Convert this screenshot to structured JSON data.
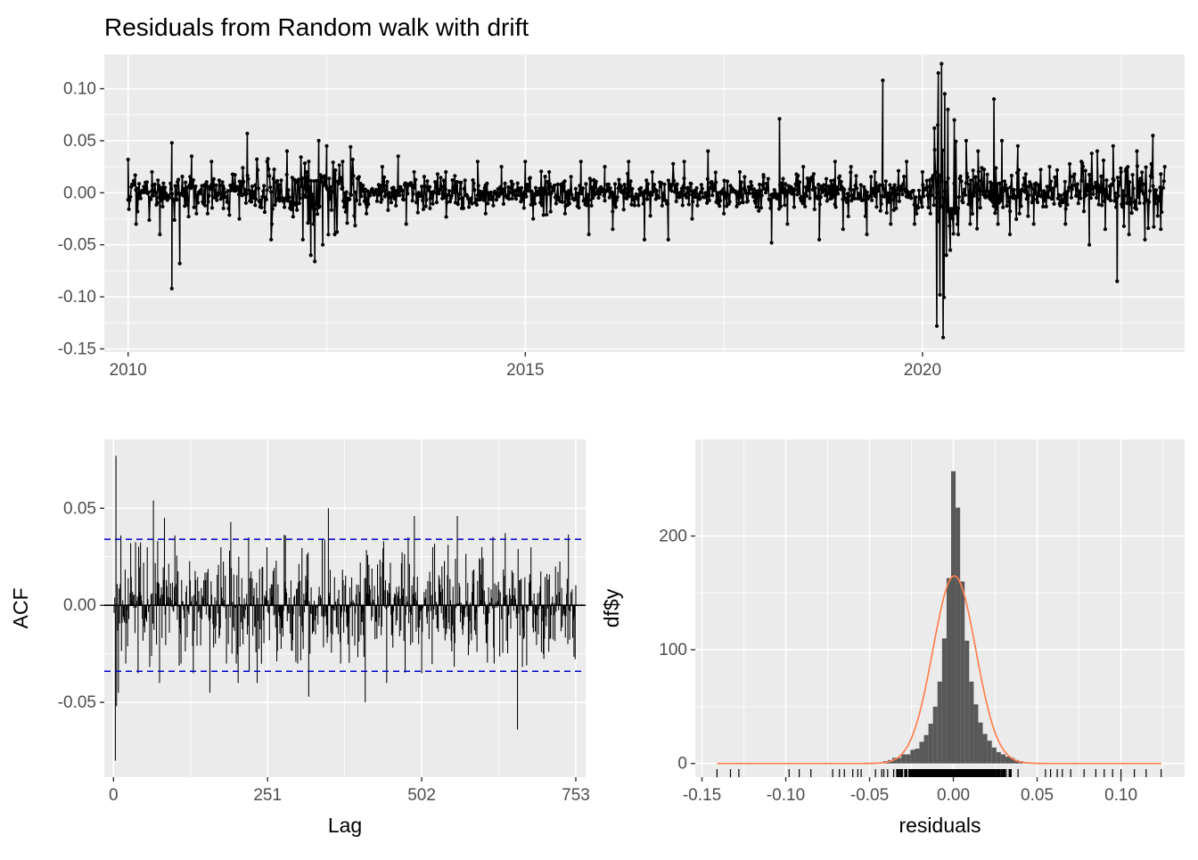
{
  "title": "Residuals from Random walk with drift",
  "colors": {
    "panel_bg": "#EBEBEB",
    "grid": "#FFFFFF",
    "series": "#000000",
    "ci_line": "#0000CC",
    "bars": "#595959",
    "density": "#FF7F50"
  },
  "chart_data": [
    {
      "name": "residuals-timeseries",
      "type": "line",
      "title": "Residuals from Random walk with drift",
      "xlabel": "",
      "ylabel": "",
      "xlim": [
        2009.7,
        2023.3
      ],
      "ylim": [
        -0.153,
        0.133
      ],
      "x_ticks": [
        2010,
        2015,
        2020
      ],
      "x_tick_labels": [
        "2010",
        "2015",
        "2020"
      ],
      "y_ticks": [
        0.1,
        0.05,
        0.0,
        -0.05,
        -0.1,
        -0.15
      ],
      "y_tick_labels": [
        "0.10",
        "0.05",
        "0.00",
        "-0.05",
        "-0.10",
        "-0.15"
      ],
      "grid": true,
      "series": [
        {
          "values_note_points": [
            [
              2010.0,
              0.032
            ],
            [
              2010.1,
              -0.03
            ],
            [
              2010.3,
              0.02
            ],
            [
              2010.4,
              -0.04
            ],
            [
              2010.55,
              0.048
            ],
            [
              2010.55,
              -0.092
            ],
            [
              2010.65,
              -0.068
            ],
            [
              2010.8,
              0.035
            ],
            [
              2011.0,
              -0.02
            ],
            [
              2011.05,
              0.03
            ],
            [
              2011.2,
              -0.015
            ],
            [
              2011.4,
              -0.025
            ],
            [
              2011.5,
              0.057
            ],
            [
              2011.6,
              -0.012
            ],
            [
              2011.75,
              0.03
            ],
            [
              2011.8,
              -0.045
            ],
            [
              2012.0,
              0.04
            ],
            [
              2012.05,
              -0.01
            ],
            [
              2012.2,
              -0.045
            ],
            [
              2012.25,
              0.02
            ],
            [
              2012.3,
              -0.06
            ],
            [
              2012.35,
              -0.066
            ],
            [
              2012.4,
              0.05
            ],
            [
              2012.45,
              -0.05
            ],
            [
              2012.5,
              0.045
            ],
            [
              2012.6,
              -0.04
            ],
            [
              2012.7,
              0.03
            ],
            [
              2012.8,
              0.044
            ],
            [
              2013.0,
              -0.02
            ],
            [
              2013.2,
              0.025
            ],
            [
              2013.4,
              0.035
            ],
            [
              2013.5,
              -0.03
            ],
            [
              2013.6,
              0.02
            ],
            [
              2013.8,
              -0.015
            ],
            [
              2014.0,
              0.02
            ],
            [
              2014.2,
              -0.015
            ],
            [
              2014.4,
              0.03
            ],
            [
              2014.5,
              -0.02
            ],
            [
              2014.7,
              0.025
            ],
            [
              2015.0,
              0.03
            ],
            [
              2015.1,
              -0.025
            ],
            [
              2015.3,
              0.02
            ],
            [
              2015.5,
              -0.02
            ],
            [
              2015.7,
              0.03
            ],
            [
              2015.8,
              -0.04
            ],
            [
              2016.0,
              0.025
            ],
            [
              2016.1,
              -0.035
            ],
            [
              2016.3,
              0.03
            ],
            [
              2016.5,
              -0.045
            ],
            [
              2016.6,
              0.02
            ],
            [
              2016.8,
              -0.045
            ],
            [
              2017.0,
              0.03
            ],
            [
              2017.1,
              -0.025
            ],
            [
              2017.3,
              0.04
            ],
            [
              2017.4,
              0.01
            ],
            [
              2017.5,
              -0.02
            ],
            [
              2017.7,
              0.02
            ],
            [
              2017.9,
              -0.01
            ],
            [
              2018.0,
              0.015
            ],
            [
              2018.1,
              -0.048
            ],
            [
              2018.2,
              0.071
            ],
            [
              2018.3,
              -0.03
            ],
            [
              2018.5,
              0.025
            ],
            [
              2018.7,
              -0.045
            ],
            [
              2018.9,
              0.03
            ],
            [
              2019.0,
              -0.035
            ],
            [
              2019.1,
              0.025
            ],
            [
              2019.3,
              -0.04
            ],
            [
              2019.4,
              0.02
            ],
            [
              2019.5,
              0.108
            ],
            [
              2019.6,
              -0.03
            ],
            [
              2019.8,
              0.03
            ],
            [
              2019.9,
              -0.03
            ],
            [
              2020.0,
              0.02
            ],
            [
              2020.1,
              -0.02
            ],
            [
              2020.15,
              0.062
            ],
            [
              2020.18,
              -0.128
            ],
            [
              2020.2,
              0.115
            ],
            [
              2020.22,
              -0.098
            ],
            [
              2020.24,
              0.124
            ],
            [
              2020.26,
              -0.139
            ],
            [
              2020.28,
              0.095
            ],
            [
              2020.3,
              -0.06
            ],
            [
              2020.32,
              0.08
            ],
            [
              2020.35,
              -0.055
            ],
            [
              2020.4,
              0.07
            ],
            [
              2020.45,
              -0.04
            ],
            [
              2020.55,
              0.05
            ],
            [
              2020.6,
              -0.03
            ],
            [
              2020.7,
              0.04
            ],
            [
              2020.9,
              0.09
            ],
            [
              2020.95,
              -0.03
            ],
            [
              2021.0,
              0.05
            ],
            [
              2021.1,
              -0.04
            ],
            [
              2021.2,
              0.045
            ],
            [
              2021.4,
              -0.03
            ],
            [
              2021.6,
              0.025
            ],
            [
              2021.8,
              -0.03
            ],
            [
              2022.0,
              0.03
            ],
            [
              2022.1,
              -0.05
            ],
            [
              2022.2,
              0.04
            ],
            [
              2022.3,
              -0.035
            ],
            [
              2022.4,
              0.045
            ],
            [
              2022.45,
              -0.085
            ],
            [
              2022.5,
              0.02
            ],
            [
              2022.6,
              -0.04
            ],
            [
              2022.7,
              0.04
            ],
            [
              2022.8,
              -0.045
            ],
            [
              2022.9,
              0.055
            ],
            [
              2023.0,
              -0.035
            ],
            [
              2023.05,
              0.025
            ]
          ]
        }
      ]
    },
    {
      "name": "acf",
      "type": "bar",
      "xlabel": "Lag",
      "ylabel": "ACF",
      "xlim": [
        -15,
        769
      ],
      "ylim": [
        -0.0885,
        0.0855
      ],
      "x_ticks": [
        0,
        251,
        502,
        753
      ],
      "x_tick_labels": [
        "0",
        "251",
        "502",
        "753"
      ],
      "y_ticks": [
        0.05,
        0.0,
        -0.05
      ],
      "y_tick_labels": [
        "0.05",
        "0.00",
        "-0.05"
      ],
      "ci": [
        0.034,
        -0.034
      ],
      "grid": true,
      "n_lags": 753,
      "notable_lags": [
        [
          1,
          -0.004
        ],
        [
          2,
          0.004
        ],
        [
          3,
          -0.08
        ],
        [
          4,
          0.077
        ],
        [
          5,
          -0.052
        ],
        [
          8,
          -0.045
        ],
        [
          12,
          0.036
        ],
        [
          20,
          -0.03
        ],
        [
          28,
          0.032
        ],
        [
          40,
          -0.035
        ],
        [
          55,
          0.03
        ],
        [
          65,
          0.054
        ],
        [
          75,
          -0.04
        ],
        [
          83,
          0.045
        ],
        [
          100,
          0.036
        ],
        [
          110,
          -0.03
        ],
        [
          130,
          -0.035
        ],
        [
          157,
          -0.045
        ],
        [
          175,
          0.03
        ],
        [
          200,
          -0.03
        ],
        [
          220,
          0.035
        ],
        [
          234,
          -0.04
        ],
        [
          250,
          0.03
        ],
        [
          280,
          0.036
        ],
        [
          300,
          -0.03
        ],
        [
          320,
          -0.025
        ],
        [
          340,
          0.034
        ],
        [
          350,
          0.05
        ],
        [
          370,
          -0.03
        ],
        [
          410,
          -0.05
        ],
        [
          440,
          0.033
        ],
        [
          445,
          -0.04
        ],
        [
          480,
          0.035
        ],
        [
          490,
          0.046
        ],
        [
          502,
          -0.035
        ],
        [
          520,
          0.03
        ],
        [
          560,
          0.046
        ],
        [
          600,
          0.03
        ],
        [
          620,
          -0.03
        ],
        [
          658,
          -0.064
        ],
        [
          680,
          0.03
        ],
        [
          700,
          -0.025
        ],
        [
          720,
          0.02
        ],
        [
          740,
          -0.02
        ]
      ]
    },
    {
      "name": "residual-histogram",
      "type": "bar",
      "xlabel": "residuals",
      "ylabel": "df$y",
      "xlim": [
        -0.154,
        0.138
      ],
      "ylim": [
        -12,
        285
      ],
      "x_ticks": [
        -0.15,
        -0.1,
        -0.05,
        0.0,
        0.05,
        0.1
      ],
      "x_tick_labels": [
        "-0.15",
        "-0.10",
        "-0.05",
        "0.00",
        "0.05",
        "0.10"
      ],
      "y_ticks": [
        0,
        100,
        200
      ],
      "y_tick_labels": [
        "0",
        "100",
        "200"
      ],
      "grid": true,
      "bin_width": 0.0027,
      "bins": [
        {
          "x": -0.0405,
          "count": 2
        },
        {
          "x": -0.0378,
          "count": 3
        },
        {
          "x": -0.0351,
          "count": 5
        },
        {
          "x": -0.0324,
          "count": 5
        },
        {
          "x": -0.0297,
          "count": 8
        },
        {
          "x": -0.027,
          "count": 8
        },
        {
          "x": -0.0243,
          "count": 12
        },
        {
          "x": -0.0216,
          "count": 13
        },
        {
          "x": -0.0189,
          "count": 19
        },
        {
          "x": -0.0162,
          "count": 25
        },
        {
          "x": -0.0135,
          "count": 35
        },
        {
          "x": -0.0108,
          "count": 50
        },
        {
          "x": -0.0081,
          "count": 72
        },
        {
          "x": -0.0054,
          "count": 110
        },
        {
          "x": -0.0027,
          "count": 163
        },
        {
          "x": 0.0,
          "count": 257
        },
        {
          "x": 0.0027,
          "count": 225
        },
        {
          "x": 0.0054,
          "count": 160
        },
        {
          "x": 0.0081,
          "count": 108
        },
        {
          "x": 0.0108,
          "count": 72
        },
        {
          "x": 0.0135,
          "count": 52
        },
        {
          "x": 0.0162,
          "count": 36
        },
        {
          "x": 0.0189,
          "count": 26
        },
        {
          "x": 0.0216,
          "count": 20
        },
        {
          "x": 0.0243,
          "count": 14
        },
        {
          "x": 0.027,
          "count": 10
        },
        {
          "x": 0.0297,
          "count": 8
        },
        {
          "x": 0.0324,
          "count": 6
        },
        {
          "x": 0.0351,
          "count": 5
        },
        {
          "x": 0.0378,
          "count": 3
        },
        {
          "x": 0.0405,
          "count": 2
        }
      ],
      "density": {
        "mean": 0.0006,
        "peak": 165,
        "sd": 0.0128
      },
      "rug_outliers": [
        -0.141,
        -0.133,
        -0.128,
        -0.098,
        -0.092,
        -0.085,
        -0.072,
        -0.068,
        -0.065,
        -0.06,
        -0.057,
        -0.055,
        0.055,
        0.058,
        0.062,
        0.065,
        0.07,
        0.078,
        0.085,
        0.09,
        0.095,
        0.1,
        0.108,
        0.115,
        0.124
      ]
    }
  ]
}
